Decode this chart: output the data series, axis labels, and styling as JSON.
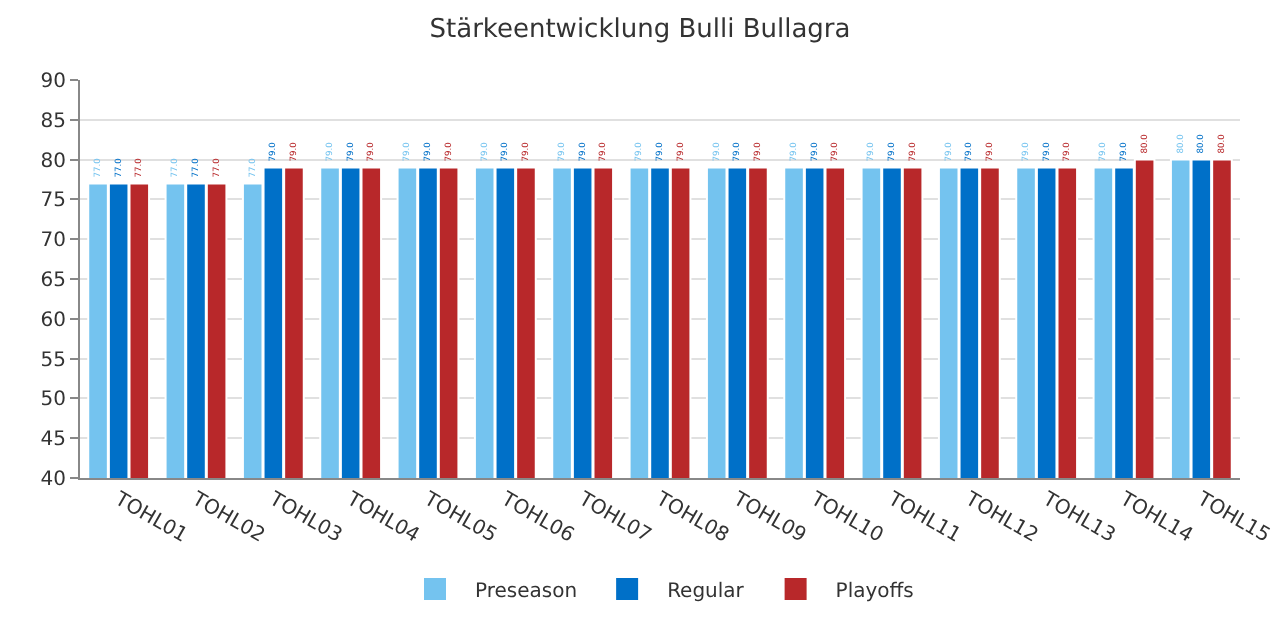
{
  "chart_data": {
    "type": "bar",
    "title": "Stärkeentwicklung Bulli Bullagra",
    "categories": [
      "TOHL01",
      "TOHL02",
      "TOHL03",
      "TOHL04",
      "TOHL05",
      "TOHL06",
      "TOHL07",
      "TOHL08",
      "TOHL09",
      "TOHL10",
      "TOHL11",
      "TOHL12",
      "TOHL13",
      "TOHL14",
      "TOHL15"
    ],
    "series": [
      {
        "name": "Preseason",
        "color": "#74c3ef",
        "values": [
          77,
          77,
          77,
          79,
          79,
          79,
          79,
          79,
          79,
          79,
          79,
          79,
          79,
          79,
          80
        ],
        "value_labels": [
          "77.0",
          "77.0",
          "77.0",
          "79.0",
          "79.0",
          "79.0",
          "79.0",
          "79.0",
          "79.0",
          "79.0",
          "79.0",
          "79.0",
          "79.0",
          "79.0",
          "80.0"
        ]
      },
      {
        "name": "Regular",
        "color": "#0070c8",
        "values": [
          77,
          77,
          79,
          79,
          79,
          79,
          79,
          79,
          79,
          79,
          79,
          79,
          79,
          79,
          80
        ],
        "value_labels": [
          "77.0",
          "77.0",
          "79.0",
          "79.0",
          "79.0",
          "79.0",
          "79.0",
          "79.0",
          "79.0",
          "79.0",
          "79.0",
          "79.0",
          "79.0",
          "79.0",
          "80.0"
        ]
      },
      {
        "name": "Playoffs",
        "color": "#b8282a",
        "values": [
          77,
          77,
          79,
          79,
          79,
          79,
          79,
          79,
          79,
          79,
          79,
          79,
          79,
          80,
          80
        ],
        "value_labels": [
          "77.0",
          "77.0",
          "79.0",
          "79.0",
          "79.0",
          "79.0",
          "79.0",
          "79.0",
          "79.0",
          "79.0",
          "79.0",
          "79.0",
          "79.0",
          "80.0",
          "80.0"
        ]
      }
    ],
    "ylim": [
      40,
      90
    ],
    "yticks": [
      40,
      45,
      50,
      55,
      60,
      65,
      70,
      75,
      80,
      85,
      90
    ],
    "grid": "y",
    "legend": "bottom"
  }
}
